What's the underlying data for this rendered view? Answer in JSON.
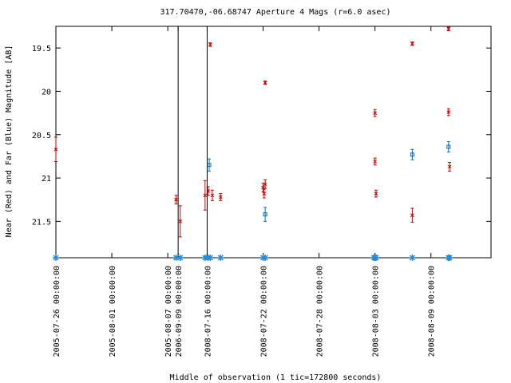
{
  "chart_data": {
    "type": "scatter",
    "title": "317.70470,-06.68747   Aperture 4 Mags (r=6.0 asec)",
    "xlabel": "Middle of observation (1 tic=172800 seconds)",
    "ylabel": "Near (Red) and Far (Blue) Magnitude [AB]",
    "y_axis_inverted": true,
    "ylim": [
      21.92,
      19.25
    ],
    "xlim": [
      0.0,
      21.0
    ],
    "yticks": [
      19.5,
      20,
      20.5,
      21,
      21.5
    ],
    "ytick_labels": [
      "19.5",
      "20",
      "20.5",
      "21",
      "21.5"
    ],
    "xticks": [
      {
        "x": 0.0,
        "label": "2005-07-26 00:00:00"
      },
      {
        "x": 2.7,
        "label": "2005-08-01 00:00:00"
      },
      {
        "x": 5.4,
        "label": "2005-08-07 00:00:00"
      },
      {
        "x": 5.9,
        "label": "2006-09-09 00:00:00"
      },
      {
        "x": 7.3,
        "label": "2008-07-16 00:00:00"
      },
      {
        "x": 10.0,
        "label": "2008-07-22 00:00:00"
      },
      {
        "x": 12.7,
        "label": "2008-07-28 00:00:00"
      },
      {
        "x": 15.4,
        "label": "2008-08-03 00:00:00"
      },
      {
        "x": 18.1,
        "label": "2008-08-09 00:00:00"
      }
    ],
    "vertical_lines": [
      5.9,
      7.3
    ],
    "series": [
      {
        "color": "#cc0000",
        "marker": "x",
        "points": [
          {
            "x": 0.0,
            "y": 20.67,
            "err": 0.14
          },
          {
            "x": 5.8,
            "y": 21.25,
            "err": 0.05
          },
          {
            "x": 6.0,
            "y": 21.5,
            "err": 0.18
          },
          {
            "x": 7.2,
            "y": 21.2,
            "err": 0.17
          },
          {
            "x": 7.35,
            "y": 21.15,
            "err": 0.05
          },
          {
            "x": 7.45,
            "y": 19.46,
            "err": 0.02
          },
          {
            "x": 7.55,
            "y": 21.2,
            "err": 0.06
          },
          {
            "x": 7.95,
            "y": 21.22,
            "err": 0.04
          },
          {
            "x": 10.0,
            "y": 21.11,
            "err": 0.05
          },
          {
            "x": 10.05,
            "y": 21.18,
            "err": 0.05
          },
          {
            "x": 10.1,
            "y": 21.07,
            "err": 0.05
          },
          {
            "x": 10.1,
            "y": 19.9,
            "err": 0.02
          },
          {
            "x": 15.4,
            "y": 20.25,
            "err": 0.04
          },
          {
            "x": 15.4,
            "y": 20.81,
            "err": 0.04
          },
          {
            "x": 15.45,
            "y": 21.18,
            "err": 0.04
          },
          {
            "x": 17.2,
            "y": 19.45,
            "err": 0.02
          },
          {
            "x": 17.2,
            "y": 21.43,
            "err": 0.08
          },
          {
            "x": 18.95,
            "y": 19.28,
            "err": 0.02
          },
          {
            "x": 18.95,
            "y": 20.24,
            "err": 0.04
          },
          {
            "x": 19.0,
            "y": 20.87,
            "err": 0.05
          }
        ]
      },
      {
        "color": "#0070c0",
        "marker": "square",
        "points": [
          {
            "x": 7.4,
            "y": 20.85,
            "err": 0.07
          },
          {
            "x": 10.1,
            "y": 21.42,
            "err": 0.08
          },
          {
            "x": 17.2,
            "y": 20.73,
            "err": 0.06
          },
          {
            "x": 18.95,
            "y": 20.64,
            "err": 0.06
          }
        ]
      }
    ],
    "baseline_markers": {
      "color": "#2a8ad6",
      "y_position": "bottom",
      "x": [
        0.0,
        5.8,
        6.0,
        7.2,
        7.35,
        7.45,
        7.95,
        10.0,
        10.1,
        15.35,
        15.4,
        15.45,
        17.2,
        18.95,
        19.0
      ]
    }
  }
}
